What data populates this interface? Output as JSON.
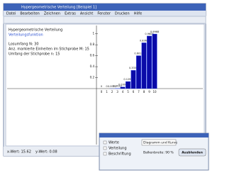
{
  "window": {
    "title": "Hypergeometrische Verteilung [Beispiel 1]",
    "menu": [
      "Datei",
      "Bearbeiten",
      "Zeichnen",
      "Extras",
      "Ansicht",
      "Fenster",
      "Drucken",
      "Hilfe"
    ]
  },
  "info": {
    "heading": "Hypergeometrische Verteilung",
    "subheading": "Verteilungsfunktion",
    "lines": [
      "Losumfang N: 30",
      "Anz. markierte Einheiten im Stichprobe M: 15",
      "Umfang der Stichprobe n: 15"
    ]
  },
  "chart_data": {
    "type": "bar",
    "categories": [
      "0",
      "1",
      "2",
      "3",
      "4",
      "5",
      "6",
      "7",
      "8",
      "9",
      "10"
    ],
    "values": [
      0,
      0,
      0.0001,
      0.0033,
      0.0304,
      0.1291,
      0.3339,
      0.6012,
      0.8363,
      0.9608,
      0.9968
    ],
    "color": "#0a0aa8",
    "ylim": [
      0,
      1.1
    ],
    "yticks": [
      0.2,
      0.4,
      0.6,
      0.8,
      1
    ],
    "grid": false
  },
  "dialog": {
    "checkboxes": [
      "Werte",
      "Verteilung",
      "Beschriftung"
    ],
    "select": "Diagramm und Kurve",
    "bar_width": "Balkenbreite: 90 %",
    "button": "Ausblenden"
  },
  "status": [
    "x-Wert: 15.62",
    "y-Wert: 0.08"
  ]
}
